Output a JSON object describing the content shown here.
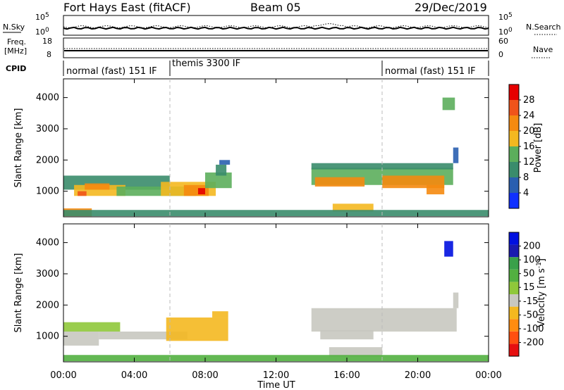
{
  "header": {
    "radar": "Fort Hays East (fitACF)",
    "beam": "Beam 05",
    "date": "29/Dec/2019"
  },
  "noise_panel": {
    "left_label": "N.Sky",
    "right_label": "N.Search",
    "left_ticks": [
      "10^5",
      "10^0"
    ],
    "right_ticks": [
      "10^5",
      "10^0"
    ]
  },
  "freq_panel": {
    "left_label_1": "Freq.",
    "left_label_2": "[MHz]",
    "right_label": "Nave",
    "left_ticks": [
      "18",
      "8"
    ],
    "right_ticks": [
      "60",
      "0"
    ]
  },
  "cpid": {
    "label": "CPID",
    "segments": [
      {
        "start_h": 0,
        "end_h": 6,
        "text": "normal (fast) 151 IF"
      },
      {
        "start_h": 6,
        "end_h": 18,
        "text": "themis 3300 IF"
      },
      {
        "start_h": 18,
        "end_h": 24,
        "text": "normal (fast) 151 IF"
      }
    ]
  },
  "x_axis": {
    "label": "Time UT",
    "range_h": [
      0,
      24
    ],
    "ticks": [
      "00:00",
      "04:00",
      "08:00",
      "12:00",
      "16:00",
      "20:00",
      "00:00"
    ]
  },
  "colors": {
    "power": [
      "#1030ff",
      "#2a5fb0",
      "#3a8c6c",
      "#5cae5c",
      "#f4b820",
      "#f58a10",
      "#f0541a",
      "#e60000"
    ],
    "velocity": [
      "#e61010",
      "#ff5010",
      "#ff8c10",
      "#f4b820",
      "#c8c8c0",
      "#8fc83a",
      "#52b040",
      "#3aa04a",
      "#1a1ab0",
      "#0010e0"
    ]
  },
  "chart_data": [
    {
      "type": "heatmap",
      "name": "power",
      "ylabel": "Slant Range [km]",
      "ylim": [
        180,
        4600
      ],
      "yticks": [
        "1000",
        "2000",
        "3000",
        "4000"
      ],
      "colorbar": {
        "label": "Power [dB]",
        "ticks": [
          "4",
          "8",
          "12",
          "16",
          "20",
          "24",
          "28"
        ],
        "range": [
          0,
          30
        ]
      },
      "regions": [
        {
          "t0": 0.0,
          "t1": 6.0,
          "r0": 1050,
          "r1": 1500,
          "v": 9
        },
        {
          "t0": 0.6,
          "t1": 3.5,
          "r0": 850,
          "r1": 1200,
          "v": 15
        },
        {
          "t0": 1.2,
          "t1": 2.6,
          "r0": 1050,
          "r1": 1250,
          "v": 20
        },
        {
          "t0": 0.8,
          "t1": 1.3,
          "r0": 850,
          "r1": 1000,
          "v": 24
        },
        {
          "t0": 3.0,
          "t1": 7.5,
          "r0": 850,
          "r1": 1150,
          "v": 12
        },
        {
          "t0": 5.5,
          "t1": 8.6,
          "r0": 850,
          "r1": 1300,
          "v": 16
        },
        {
          "t0": 6.8,
          "t1": 8.2,
          "r0": 850,
          "r1": 1200,
          "v": 22
        },
        {
          "t0": 7.6,
          "t1": 8.0,
          "r0": 900,
          "r1": 1100,
          "v": 27
        },
        {
          "t0": 8.0,
          "t1": 9.5,
          "r0": 1100,
          "r1": 1600,
          "v": 12
        },
        {
          "t0": 8.6,
          "t1": 9.2,
          "r0": 1500,
          "r1": 1850,
          "v": 9
        },
        {
          "t0": 14.0,
          "t1": 22.0,
          "r0": 1200,
          "r1": 1750,
          "v": 14
        },
        {
          "t0": 14.2,
          "t1": 17.0,
          "r0": 1150,
          "r1": 1450,
          "v": 19
        },
        {
          "t0": 18.0,
          "t1": 21.5,
          "r0": 1100,
          "r1": 1500,
          "v": 20
        },
        {
          "t0": 20.5,
          "t1": 21.5,
          "r0": 900,
          "r1": 1200,
          "v": 22
        },
        {
          "t0": 14.0,
          "t1": 22.0,
          "r0": 1700,
          "r1": 1900,
          "v": 8
        },
        {
          "t0": 15.2,
          "t1": 17.5,
          "r0": 350,
          "r1": 600,
          "v": 16
        },
        {
          "t0": 0.0,
          "t1": 1.6,
          "r0": 200,
          "r1": 450,
          "v": 22
        },
        {
          "t0": 0.0,
          "t1": 24.0,
          "r0": 200,
          "r1": 400,
          "v": 10
        },
        {
          "t0": 21.4,
          "t1": 22.1,
          "r0": 3600,
          "r1": 4000,
          "v": 12
        },
        {
          "t0": 22.0,
          "t1": 22.3,
          "r0": 1900,
          "r1": 2400,
          "v": 6
        },
        {
          "t0": 8.8,
          "t1": 9.4,
          "r0": 1850,
          "r1": 2000,
          "v": 6
        }
      ]
    },
    {
      "type": "heatmap",
      "name": "velocity",
      "ylabel": "Slant Range [km]",
      "ylim": [
        180,
        4600
      ],
      "yticks": [
        "1000",
        "2000",
        "3000",
        "4000"
      ],
      "colorbar": {
        "label": "Velocity [m s^-1]",
        "ticks": [
          "-200",
          "-100",
          "-50",
          "-15",
          "15",
          "50",
          "100",
          "200"
        ]
      },
      "regions": [
        {
          "t0": 0.0,
          "t1": 3.2,
          "r0": 1150,
          "r1": 1450,
          "c": 5
        },
        {
          "t0": 0.0,
          "t1": 2.0,
          "r0": 700,
          "r1": 1150,
          "c": 4
        },
        {
          "t0": 2.0,
          "t1": 7.0,
          "r0": 900,
          "r1": 1150,
          "c": 4
        },
        {
          "t0": 5.8,
          "t1": 9.3,
          "r0": 850,
          "r1": 1600,
          "c": 3
        },
        {
          "t0": 8.4,
          "t1": 9.3,
          "r0": 1600,
          "r1": 1800,
          "c": 3
        },
        {
          "t0": 14.0,
          "t1": 22.2,
          "r0": 1150,
          "r1": 1900,
          "c": 4
        },
        {
          "t0": 14.5,
          "t1": 17.5,
          "r0": 900,
          "r1": 1200,
          "c": 4
        },
        {
          "t0": 15.0,
          "t1": 18.0,
          "r0": 350,
          "r1": 650,
          "c": 4
        },
        {
          "t0": 0.0,
          "t1": 24.0,
          "r0": 200,
          "r1": 400,
          "c": 6
        },
        {
          "t0": 21.5,
          "t1": 22.0,
          "r0": 3550,
          "r1": 4050,
          "c": 9
        },
        {
          "t0": 22.0,
          "t1": 22.3,
          "r0": 1900,
          "r1": 2400,
          "c": 4
        }
      ]
    }
  ]
}
